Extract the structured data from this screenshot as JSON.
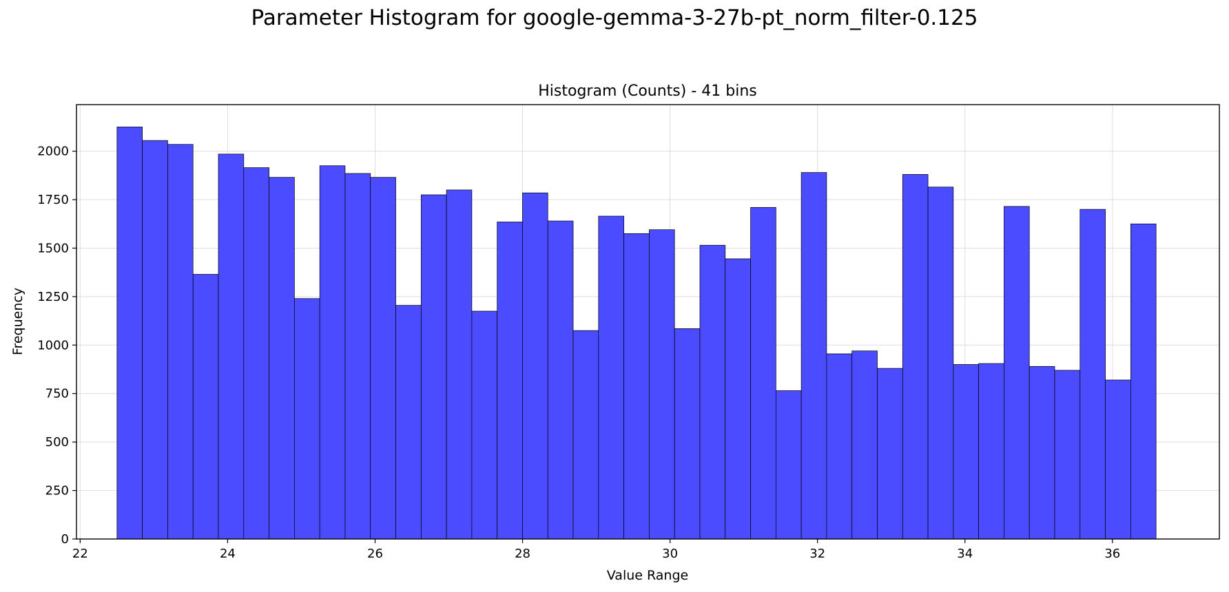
{
  "figure": {
    "suptitle": "Parameter Histogram for google-gemma-3-27b-pt_norm_filter-0.125"
  },
  "chart_data": {
    "type": "bar",
    "title": "Histogram (Counts) - 41 bins",
    "xlabel": "Value Range",
    "ylabel": "Frequency",
    "xlim": [
      21.95,
      37.45
    ],
    "ylim": [
      0,
      2240
    ],
    "x_ticks": [
      22,
      24,
      26,
      28,
      30,
      32,
      34,
      36
    ],
    "y_ticks": [
      0,
      250,
      500,
      750,
      1000,
      1250,
      1500,
      1750,
      2000
    ],
    "grid": true,
    "bar_color": "#4b4bff",
    "edge_color": "#000000",
    "bin_start": 22.5,
    "bin_width": 0.3437,
    "values": [
      2125,
      2055,
      2035,
      1365,
      1985,
      1915,
      1865,
      1240,
      1925,
      1885,
      1865,
      1205,
      1775,
      1800,
      1175,
      1635,
      1785,
      1640,
      1075,
      1665,
      1575,
      1595,
      1085,
      1515,
      1445,
      1710,
      765,
      1890,
      955,
      970,
      880,
      1880,
      1815,
      900,
      905,
      1715,
      890,
      870,
      1700,
      820,
      1625
    ]
  }
}
